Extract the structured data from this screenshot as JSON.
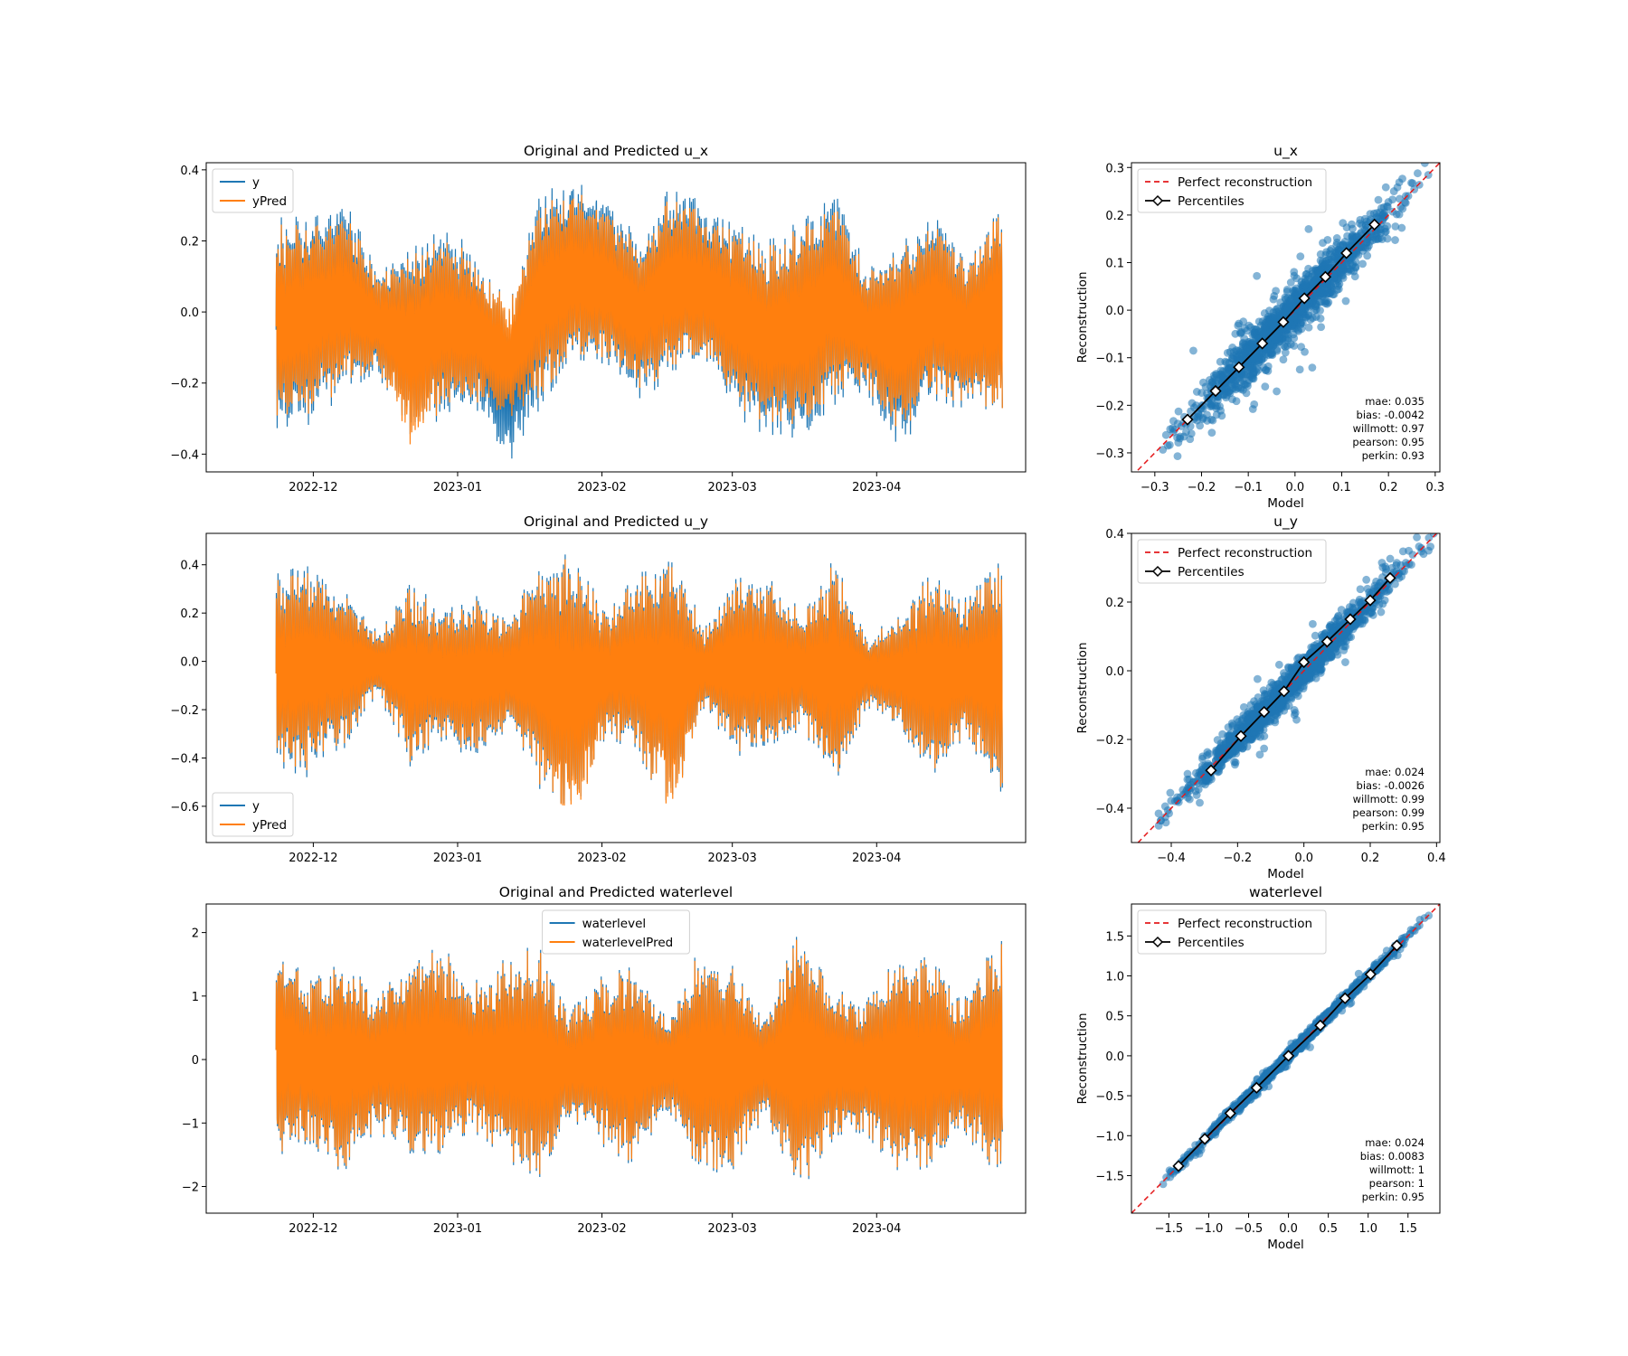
{
  "colors": {
    "observed": "#1f77b4",
    "predicted": "#ff7f0e",
    "perfect_line": "#e41a1c",
    "percentiles": "#000000",
    "scatter": "#1f77b4"
  },
  "chart_data": [
    {
      "type": "line",
      "title": "Original and Predicted u_x",
      "xlabel": "",
      "ylabel": "",
      "x_tick_labels": [
        "2022-12",
        "2023-01",
        "2023-02",
        "2023-03",
        "2023-04"
      ],
      "y_tick_labels": [
        "−0.4",
        "−0.2",
        "0.0",
        "0.2",
        "0.4"
      ],
      "yticks": [
        -0.4,
        -0.2,
        0.0,
        0.2,
        0.4
      ],
      "ylim": [
        -0.45,
        0.42
      ],
      "xlim": [
        "2022-11-08",
        "2023-05-03"
      ],
      "data_range": [
        "2022-11-23",
        "2023-04-28"
      ],
      "legend": "top-left",
      "series": [
        {
          "name": "y",
          "color": "#1f77b4",
          "envelope_dates": [
            "2022-11-23",
            "2022-12-01",
            "2022-12-08",
            "2022-12-15",
            "2022-12-22",
            "2022-12-29",
            "2023-01-05",
            "2023-01-12",
            "2023-01-19",
            "2023-01-26",
            "2023-02-02",
            "2023-02-09",
            "2023-02-16",
            "2023-02-23",
            "2023-03-02",
            "2023-03-09",
            "2023-03-16",
            "2023-03-23",
            "2023-03-30",
            "2023-04-06",
            "2023-04-13",
            "2023-04-20",
            "2023-04-28"
          ],
          "envelope_max": [
            0.27,
            0.3,
            0.33,
            0.12,
            0.21,
            0.24,
            0.18,
            0.02,
            0.38,
            0.39,
            0.33,
            0.22,
            0.36,
            0.31,
            0.26,
            0.22,
            0.27,
            0.35,
            0.13,
            0.22,
            0.3,
            0.16,
            0.35
          ],
          "envelope_min": [
            -0.37,
            -0.31,
            -0.24,
            -0.19,
            -0.35,
            -0.3,
            -0.28,
            -0.43,
            -0.28,
            -0.18,
            -0.17,
            -0.25,
            -0.2,
            -0.15,
            -0.3,
            -0.38,
            -0.37,
            -0.28,
            -0.24,
            -0.41,
            -0.26,
            -0.29,
            -0.31
          ]
        },
        {
          "name": "yPred",
          "color": "#ff7f0e",
          "envelope_dates": [
            "2022-11-23",
            "2022-12-01",
            "2022-12-08",
            "2022-12-15",
            "2022-12-22",
            "2022-12-29",
            "2023-01-05",
            "2023-01-12",
            "2023-01-19",
            "2023-01-26",
            "2023-02-02",
            "2023-02-09",
            "2023-02-16",
            "2023-02-23",
            "2023-03-02",
            "2023-03-09",
            "2023-03-16",
            "2023-03-23",
            "2023-03-30",
            "2023-04-06",
            "2023-04-13",
            "2023-04-20",
            "2023-04-28"
          ],
          "envelope_max": [
            0.25,
            0.27,
            0.29,
            0.11,
            0.19,
            0.21,
            0.16,
            0.02,
            0.34,
            0.36,
            0.3,
            0.2,
            0.33,
            0.28,
            0.24,
            0.2,
            0.25,
            0.31,
            0.12,
            0.2,
            0.27,
            0.15,
            0.34
          ],
          "envelope_min": [
            -0.33,
            -0.28,
            -0.22,
            -0.17,
            -0.38,
            -0.27,
            -0.26,
            -0.3,
            -0.25,
            -0.16,
            -0.15,
            -0.22,
            -0.18,
            -0.14,
            -0.27,
            -0.34,
            -0.33,
            -0.25,
            -0.22,
            -0.36,
            -0.24,
            -0.27,
            -0.31
          ]
        }
      ]
    },
    {
      "type": "scatter",
      "title": "u_x",
      "xlabel": "Model",
      "ylabel": "Reconstruction",
      "xlim": [
        -0.35,
        0.31
      ],
      "ylim": [
        -0.34,
        0.31
      ],
      "xticks": [
        -0.3,
        -0.2,
        -0.1,
        0.0,
        0.1,
        0.2,
        0.3
      ],
      "x_tick_labels": [
        "−0.3",
        "−0.2",
        "−0.1",
        "0.0",
        "0.1",
        "0.2",
        "0.3"
      ],
      "yticks": [
        -0.3,
        -0.2,
        -0.1,
        0.0,
        0.1,
        0.2,
        0.3
      ],
      "y_tick_labels": [
        "−0.3",
        "−0.2",
        "−0.1",
        "0.0",
        "0.1",
        "0.2",
        "0.3"
      ],
      "legend": "top-left",
      "legend_entries": [
        "Perfect reconstruction",
        "Percentiles"
      ],
      "perfect_line": [
        [
          -0.35,
          -0.35
        ],
        [
          0.31,
          0.31
        ]
      ],
      "percentiles": [
        [
          -0.23,
          -0.23
        ],
        [
          -0.17,
          -0.17
        ],
        [
          -0.12,
          -0.12
        ],
        [
          -0.07,
          -0.07
        ],
        [
          -0.025,
          -0.025
        ],
        [
          0.02,
          0.025
        ],
        [
          0.065,
          0.07
        ],
        [
          0.11,
          0.12
        ],
        [
          0.17,
          0.18
        ]
      ],
      "scatter_spread": 0.045,
      "stats": [
        "mae: 0.035",
        "bias: -0.0042",
        "willmott: 0.97",
        "pearson: 0.95",
        "perkin: 0.93"
      ]
    },
    {
      "type": "line",
      "title": "Original and Predicted u_y",
      "xlabel": "",
      "ylabel": "",
      "x_tick_labels": [
        "2022-12",
        "2023-01",
        "2023-02",
        "2023-03",
        "2023-04"
      ],
      "y_tick_labels": [
        "−0.6",
        "−0.4",
        "−0.2",
        "0.0",
        "0.2",
        "0.4"
      ],
      "yticks": [
        -0.6,
        -0.4,
        -0.2,
        0.0,
        0.2,
        0.4
      ],
      "ylim": [
        -0.75,
        0.53
      ],
      "xlim": [
        "2022-11-08",
        "2023-05-03"
      ],
      "data_range": [
        "2022-11-23",
        "2023-04-28"
      ],
      "legend": "bottom-left",
      "series": [
        {
          "name": "y",
          "color": "#1f77b4",
          "envelope_dates": [
            "2022-11-23",
            "2022-12-01",
            "2022-12-08",
            "2022-12-15",
            "2022-12-22",
            "2022-12-29",
            "2023-01-05",
            "2023-01-12",
            "2023-01-19",
            "2023-01-26",
            "2023-02-02",
            "2023-02-09",
            "2023-02-16",
            "2023-02-23",
            "2023-03-02",
            "2023-03-09",
            "2023-03-16",
            "2023-03-23",
            "2023-03-30",
            "2023-04-06",
            "2023-04-13",
            "2023-04-20",
            "2023-04-28"
          ],
          "envelope_max": [
            0.4,
            0.42,
            0.32,
            0.12,
            0.34,
            0.24,
            0.28,
            0.2,
            0.45,
            0.48,
            0.22,
            0.38,
            0.48,
            0.14,
            0.38,
            0.36,
            0.22,
            0.46,
            0.12,
            0.2,
            0.4,
            0.28,
            0.46
          ],
          "envelope_min": [
            -0.5,
            -0.48,
            -0.36,
            -0.14,
            -0.45,
            -0.36,
            -0.4,
            -0.3,
            -0.55,
            -0.68,
            -0.3,
            -0.45,
            -0.62,
            -0.2,
            -0.42,
            -0.4,
            -0.28,
            -0.58,
            -0.2,
            -0.3,
            -0.5,
            -0.35,
            -0.55
          ]
        },
        {
          "name": "yPred",
          "color": "#ff7f0e",
          "envelope_dates": [
            "2022-11-23",
            "2022-12-01",
            "2022-12-08",
            "2022-12-15",
            "2022-12-22",
            "2022-12-29",
            "2023-01-05",
            "2023-01-12",
            "2023-01-19",
            "2023-01-26",
            "2023-02-02",
            "2023-02-09",
            "2023-02-16",
            "2023-02-23",
            "2023-03-02",
            "2023-03-09",
            "2023-03-16",
            "2023-03-23",
            "2023-03-30",
            "2023-04-06",
            "2023-04-13",
            "2023-04-20",
            "2023-04-28"
          ],
          "envelope_max": [
            0.37,
            0.39,
            0.3,
            0.11,
            0.32,
            0.22,
            0.26,
            0.19,
            0.43,
            0.46,
            0.21,
            0.36,
            0.46,
            0.13,
            0.36,
            0.34,
            0.21,
            0.44,
            0.11,
            0.19,
            0.38,
            0.26,
            0.44
          ],
          "envelope_min": [
            -0.47,
            -0.45,
            -0.34,
            -0.13,
            -0.43,
            -0.34,
            -0.38,
            -0.29,
            -0.53,
            -0.7,
            -0.29,
            -0.43,
            -0.64,
            -0.19,
            -0.4,
            -0.38,
            -0.27,
            -0.56,
            -0.19,
            -0.29,
            -0.48,
            -0.34,
            -0.53
          ]
        }
      ]
    },
    {
      "type": "scatter",
      "title": "u_y",
      "xlabel": "Model",
      "ylabel": "Reconstruction",
      "xlim": [
        -0.52,
        0.41
      ],
      "ylim": [
        -0.5,
        0.4
      ],
      "xticks": [
        -0.4,
        -0.2,
        0.0,
        0.2,
        0.4
      ],
      "x_tick_labels": [
        "−0.4",
        "−0.2",
        "0.0",
        "0.2",
        "0.4"
      ],
      "yticks": [
        -0.4,
        -0.2,
        0.0,
        0.2,
        0.4
      ],
      "y_tick_labels": [
        "−0.4",
        "−0.2",
        "0.0",
        "0.2",
        "0.4"
      ],
      "legend": "top-left",
      "legend_entries": [
        "Perfect reconstruction",
        "Percentiles"
      ],
      "perfect_line": [
        [
          -0.52,
          -0.52
        ],
        [
          0.41,
          0.41
        ]
      ],
      "percentiles": [
        [
          -0.28,
          -0.29
        ],
        [
          -0.19,
          -0.19
        ],
        [
          -0.12,
          -0.12
        ],
        [
          -0.06,
          -0.06
        ],
        [
          0.0,
          0.025
        ],
        [
          0.07,
          0.085
        ],
        [
          0.14,
          0.15
        ],
        [
          0.2,
          0.205
        ],
        [
          0.26,
          0.27
        ]
      ],
      "scatter_spread": 0.04,
      "stats": [
        "mae: 0.024",
        "bias: -0.0026",
        "willmott: 0.99",
        "pearson: 0.99",
        "perkin: 0.95"
      ]
    },
    {
      "type": "line",
      "title": "Original and Predicted waterlevel",
      "xlabel": "",
      "ylabel": "",
      "x_tick_labels": [
        "2022-12",
        "2023-01",
        "2023-02",
        "2023-03",
        "2023-04"
      ],
      "y_tick_labels": [
        "−2",
        "−1",
        "0",
        "1",
        "2"
      ],
      "yticks": [
        -2,
        -1,
        0,
        1,
        2
      ],
      "ylim": [
        -2.42,
        2.45
      ],
      "xlim": [
        "2022-11-08",
        "2023-05-03"
      ],
      "data_range": [
        "2022-11-23",
        "2023-04-28"
      ],
      "legend": "top-center",
      "series": [
        {
          "name": "waterlevel",
          "color": "#1f77b4",
          "envelope_dates": [
            "2022-11-23",
            "2022-11-30",
            "2022-12-07",
            "2022-12-14",
            "2022-12-21",
            "2022-12-28",
            "2023-01-04",
            "2023-01-11",
            "2023-01-18",
            "2023-01-25",
            "2023-02-01",
            "2023-02-08",
            "2023-02-15",
            "2023-02-22",
            "2023-03-01",
            "2023-03-08",
            "2023-03-15",
            "2023-03-22",
            "2023-03-29",
            "2023-04-05",
            "2023-04-12",
            "2023-04-19",
            "2023-04-28"
          ],
          "envelope_max": [
            2.0,
            1.3,
            1.75,
            1.15,
            1.6,
            1.9,
            1.25,
            1.65,
            1.9,
            0.8,
            1.35,
            1.6,
            0.7,
            1.8,
            1.65,
            0.75,
            2.2,
            1.3,
            0.95,
            1.7,
            1.8,
            1.0,
            2.0
          ],
          "envelope_min": [
            -1.7,
            -1.4,
            -1.9,
            -1.2,
            -1.5,
            -1.7,
            -1.2,
            -1.65,
            -2.1,
            -1.0,
            -1.4,
            -1.8,
            -0.8,
            -2.0,
            -1.8,
            -0.9,
            -2.2,
            -1.4,
            -1.2,
            -1.9,
            -1.9,
            -1.2,
            -2.0
          ]
        },
        {
          "name": "waterlevelPred",
          "color": "#ff7f0e",
          "envelope_dates": [
            "2022-11-23",
            "2022-11-30",
            "2022-12-07",
            "2022-12-14",
            "2022-12-21",
            "2022-12-28",
            "2023-01-04",
            "2023-01-11",
            "2023-01-18",
            "2023-01-25",
            "2023-02-01",
            "2023-02-08",
            "2023-02-15",
            "2023-02-22",
            "2023-03-01",
            "2023-03-08",
            "2023-03-15",
            "2023-03-22",
            "2023-03-29",
            "2023-04-05",
            "2023-04-12",
            "2023-04-19",
            "2023-04-28"
          ],
          "envelope_max": [
            1.95,
            1.25,
            1.7,
            1.1,
            1.55,
            1.85,
            1.2,
            1.6,
            1.85,
            0.75,
            1.3,
            1.55,
            0.65,
            1.75,
            1.6,
            0.7,
            2.15,
            1.25,
            0.9,
            1.65,
            1.75,
            0.95,
            1.95
          ],
          "envelope_min": [
            -1.65,
            -1.35,
            -1.85,
            -1.15,
            -1.45,
            -1.65,
            -1.15,
            -1.6,
            -2.05,
            -0.95,
            -1.35,
            -1.75,
            -0.75,
            -1.95,
            -1.75,
            -0.85,
            -2.15,
            -1.35,
            -1.15,
            -1.85,
            -1.85,
            -1.15,
            -1.95
          ]
        }
      ]
    },
    {
      "type": "scatter",
      "title": "waterlevel",
      "xlabel": "Model",
      "ylabel": "Reconstruction",
      "xlim": [
        -1.97,
        1.9
      ],
      "ylim": [
        -1.97,
        1.9
      ],
      "xticks": [
        -1.5,
        -1.0,
        -0.5,
        0.0,
        0.5,
        1.0,
        1.5
      ],
      "x_tick_labels": [
        "−1.5",
        "−1.0",
        "−0.5",
        "0.0",
        "0.5",
        "1.0",
        "1.5"
      ],
      "yticks": [
        -1.5,
        -1.0,
        -0.5,
        0.0,
        0.5,
        1.0,
        1.5
      ],
      "y_tick_labels": [
        "−1.5",
        "−1.0",
        "−0.5",
        "0.0",
        "0.5",
        "1.0",
        "1.5"
      ],
      "legend": "top-left",
      "legend_entries": [
        "Perfect reconstruction",
        "Percentiles"
      ],
      "perfect_line": [
        [
          -1.97,
          -1.97
        ],
        [
          1.9,
          1.9
        ]
      ],
      "percentiles": [
        [
          -1.38,
          -1.38
        ],
        [
          -1.05,
          -1.04
        ],
        [
          -0.73,
          -0.72
        ],
        [
          -0.4,
          -0.4
        ],
        [
          0.0,
          0.0
        ],
        [
          0.4,
          0.38
        ],
        [
          0.71,
          0.72
        ],
        [
          1.03,
          1.02
        ],
        [
          1.36,
          1.38
        ]
      ],
      "scatter_spread": 0.05,
      "stats": [
        "mae: 0.024",
        "bias: 0.0083",
        "willmott: 1",
        "pearson: 1",
        "perkin: 0.95"
      ]
    }
  ]
}
